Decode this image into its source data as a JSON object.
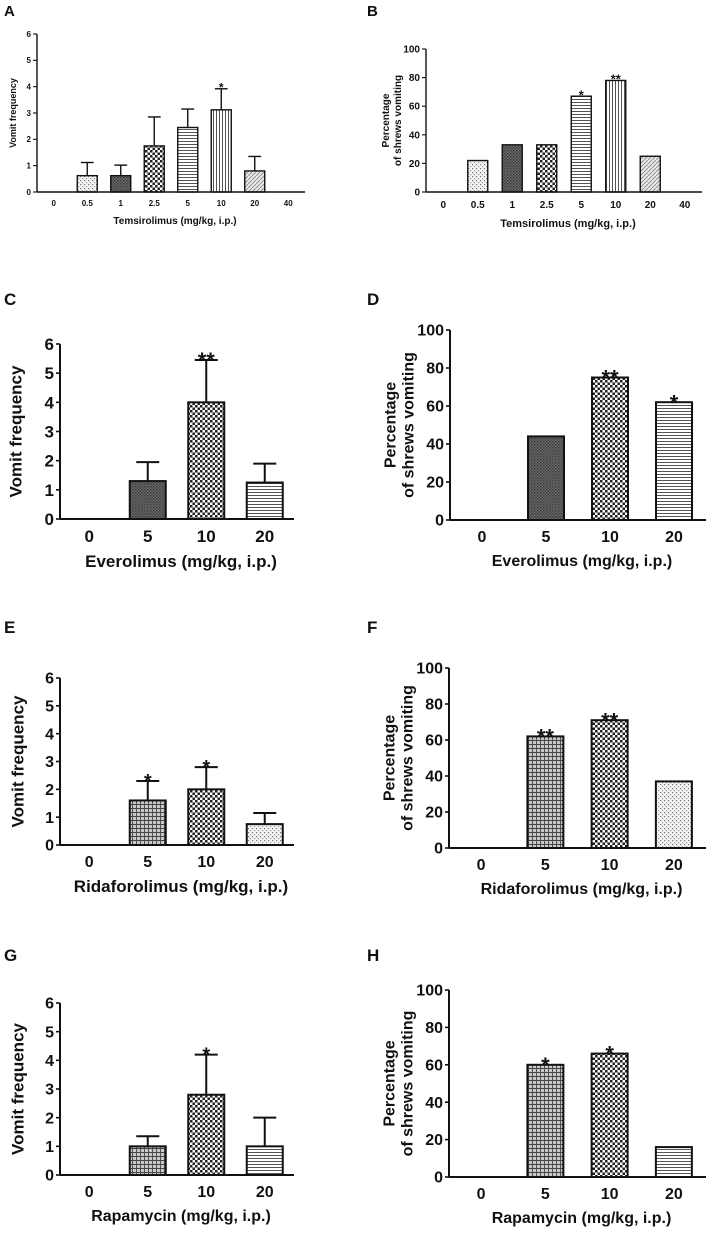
{
  "figure": {
    "background": "#ffffff",
    "axis_color": "#111111"
  },
  "chart_data": [
    {
      "panel": "A",
      "type": "bar",
      "categories": [
        "0",
        "0.5",
        "1",
        "2.5",
        "5",
        "10",
        "20",
        "40"
      ],
      "values": [
        0,
        0.62,
        0.62,
        1.75,
        2.45,
        3.12,
        0.8,
        0
      ],
      "errors": [
        0,
        0.5,
        0.4,
        1.1,
        0.7,
        0.8,
        0.55,
        0
      ],
      "significance": [
        "",
        "",
        "",
        "",
        "",
        "*",
        "",
        ""
      ],
      "patterns": [
        "none",
        "dots",
        "dark",
        "checker",
        "hlines",
        "vlines",
        "diag",
        "none"
      ],
      "xlabel": "Temsirolimus (mg/kg, i.p.)",
      "ylabel": "Vomit frequency",
      "ylim": [
        0,
        6
      ],
      "yticks": [
        0,
        1,
        2,
        3,
        4,
        5,
        6
      ]
    },
    {
      "panel": "B",
      "type": "bar",
      "categories": [
        "0",
        "0.5",
        "1",
        "2.5",
        "5",
        "10",
        "20",
        "40"
      ],
      "values": [
        0,
        22,
        33,
        33,
        67,
        78,
        25,
        0
      ],
      "significance": [
        "",
        "",
        "",
        "",
        "*",
        "**",
        "",
        ""
      ],
      "patterns": [
        "none",
        "dots",
        "dark",
        "checker",
        "hlines",
        "vlines",
        "diag",
        "none"
      ],
      "xlabel": "Temsirolimus (mg/kg, i.p.)",
      "ylabel": [
        "Percentage",
        "of shrews vomiting"
      ],
      "ylim": [
        0,
        100
      ],
      "yticks": [
        0,
        20,
        40,
        60,
        80,
        100
      ]
    },
    {
      "panel": "C",
      "type": "bar",
      "categories": [
        "0",
        "5",
        "10",
        "20"
      ],
      "values": [
        0,
        1.3,
        4.0,
        1.25
      ],
      "errors": [
        0,
        0.65,
        1.45,
        0.65
      ],
      "significance": [
        "",
        "",
        "**",
        ""
      ],
      "patterns": [
        "none",
        "dark",
        "checker",
        "hlines"
      ],
      "xlabel": "Everolimus (mg/kg, i.p.)",
      "ylabel": "Vomit frequency",
      "ylim": [
        0,
        6
      ],
      "yticks": [
        0,
        1,
        2,
        3,
        4,
        5,
        6
      ]
    },
    {
      "panel": "D",
      "type": "bar",
      "categories": [
        "0",
        "5",
        "10",
        "20"
      ],
      "values": [
        0,
        44,
        75,
        62
      ],
      "significance": [
        "",
        "",
        "**",
        "*"
      ],
      "patterns": [
        "none",
        "dark",
        "checker",
        "hlines"
      ],
      "xlabel": "Everolimus (mg/kg, i.p.)",
      "ylabel": [
        "Percentage",
        "of shrews vomiting"
      ],
      "ylim": [
        0,
        100
      ],
      "yticks": [
        0,
        20,
        40,
        60,
        80,
        100
      ]
    },
    {
      "panel": "E",
      "type": "bar",
      "categories": [
        "0",
        "5",
        "10",
        "20"
      ],
      "values": [
        0,
        1.6,
        2.0,
        0.75
      ],
      "errors": [
        0,
        0.7,
        0.8,
        0.4
      ],
      "significance": [
        "",
        "*",
        "*",
        ""
      ],
      "patterns": [
        "none",
        "grid",
        "checker",
        "dots"
      ],
      "xlabel": "Ridaforolimus (mg/kg, i.p.)",
      "ylabel": "Vomit frequency",
      "ylim": [
        0,
        6
      ],
      "yticks": [
        0,
        1,
        2,
        3,
        4,
        5,
        6
      ]
    },
    {
      "panel": "F",
      "type": "bar",
      "categories": [
        "0",
        "5",
        "10",
        "20"
      ],
      "values": [
        0,
        62,
        71,
        37
      ],
      "significance": [
        "",
        "**",
        "**",
        ""
      ],
      "patterns": [
        "none",
        "grid",
        "checker",
        "dots"
      ],
      "xlabel": "Ridaforolimus (mg/kg, i.p.)",
      "ylabel": [
        "Percentage",
        "of shrews vomiting"
      ],
      "ylim": [
        0,
        100
      ],
      "yticks": [
        0,
        20,
        40,
        60,
        80,
        100
      ]
    },
    {
      "panel": "G",
      "type": "bar",
      "categories": [
        "0",
        "5",
        "10",
        "20"
      ],
      "values": [
        0,
        1.0,
        2.8,
        1.0
      ],
      "errors": [
        0,
        0.35,
        1.4,
        1.0
      ],
      "significance": [
        "",
        "",
        "*",
        ""
      ],
      "patterns": [
        "none",
        "grid",
        "checker",
        "hlines"
      ],
      "xlabel": "Rapamycin (mg/kg, i.p.)",
      "ylabel": "Vomit frequency",
      "ylim": [
        0,
        6
      ],
      "yticks": [
        0,
        1,
        2,
        3,
        4,
        5,
        6
      ]
    },
    {
      "panel": "H",
      "type": "bar",
      "categories": [
        "0",
        "5",
        "10",
        "20"
      ],
      "values": [
        0,
        60,
        66,
        16
      ],
      "significance": [
        "",
        "*",
        "*",
        ""
      ],
      "patterns": [
        "none",
        "grid",
        "checker",
        "hlines"
      ],
      "xlabel": "Rapamycin (mg/kg, i.p.)",
      "ylabel": [
        "Percentage",
        "of shrews vomiting"
      ],
      "ylim": [
        0,
        100
      ],
      "yticks": [
        0,
        20,
        40,
        60,
        80,
        100
      ]
    }
  ]
}
